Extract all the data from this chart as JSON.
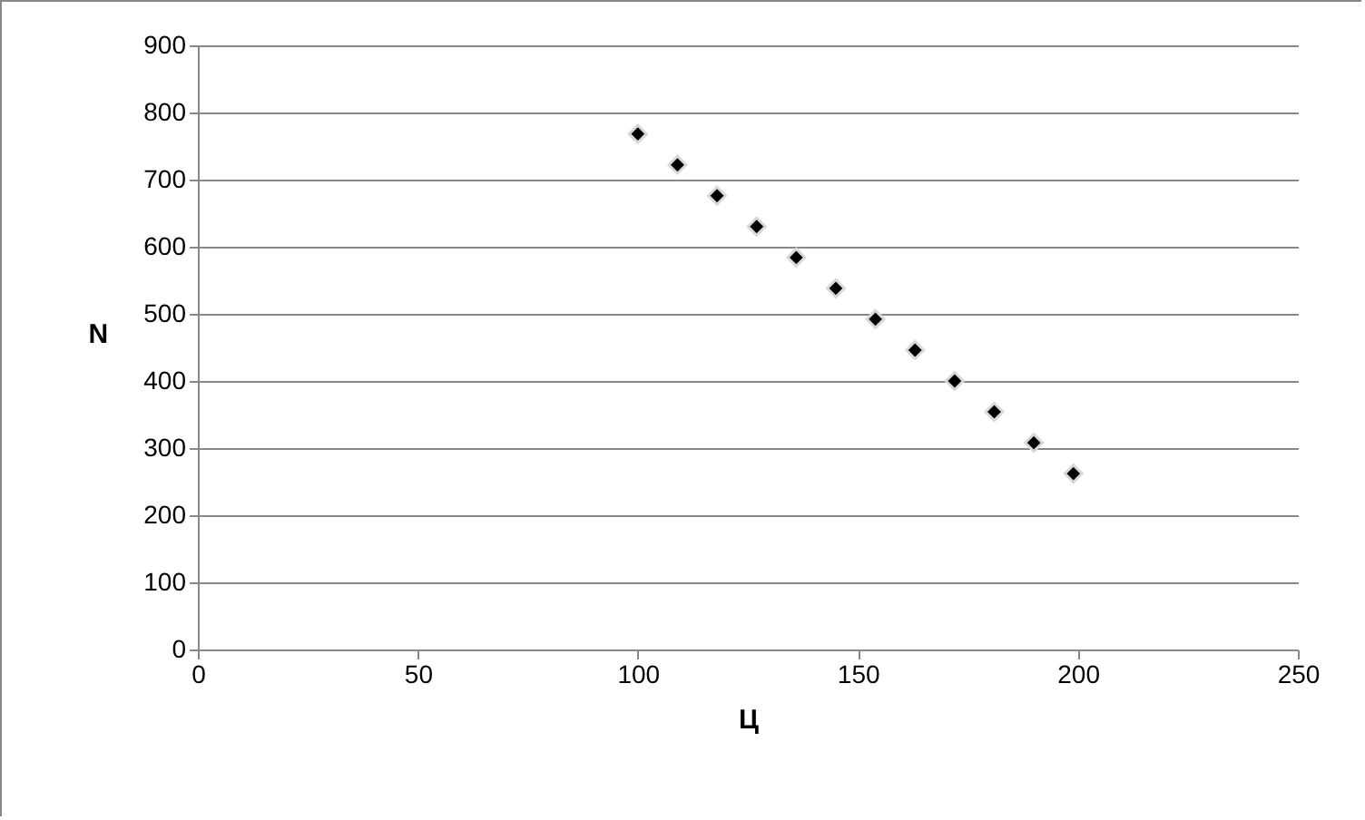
{
  "chart_data": {
    "type": "scatter",
    "xlabel": "Ц",
    "ylabel": "N",
    "x": [
      100,
      109,
      118,
      127,
      136,
      145,
      154,
      163,
      172,
      181,
      190,
      199
    ],
    "series": [
      {
        "color": "#000000",
        "values": [
          768,
          722,
          676,
          630,
          584,
          538,
          492,
          446,
          400,
          354,
          308,
          262
        ]
      }
    ],
    "xlim": [
      0,
      250
    ],
    "xticks": [
      0,
      50,
      100,
      150,
      200,
      250
    ],
    "ylim": [
      0,
      900
    ],
    "yticks": [
      0,
      100,
      200,
      300,
      400,
      500,
      600,
      700,
      800,
      900
    ],
    "grid": "y",
    "marker": "diamond"
  }
}
